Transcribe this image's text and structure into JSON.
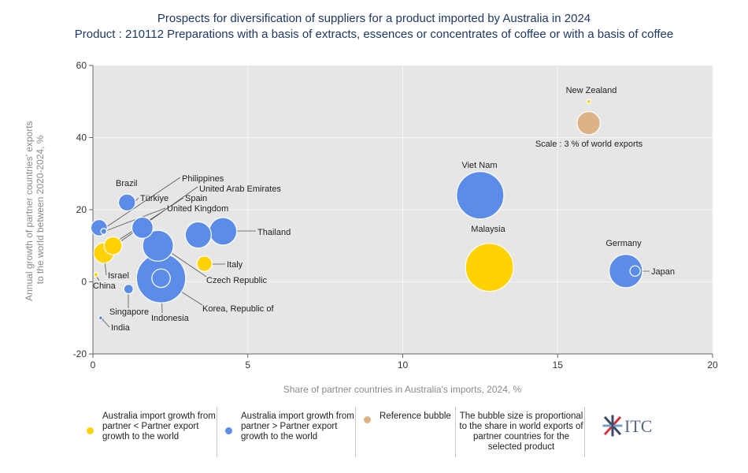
{
  "chart_data": {
    "type": "scatter",
    "title": "Prospects for diversification of suppliers for a product imported by Australia in 2024",
    "subtitle": "Product : 210112 Preparations with a basis of extracts, essences or concentrates of coffee or with a basis of coffee",
    "xlabel": "Share of partner countries in Australia's imports, 2024, %",
    "ylabel_lines": [
      "Annual growth of partner countries' exports",
      "to the world between 2020-2024, %"
    ],
    "xlim": [
      0,
      20
    ],
    "ylim": [
      -20,
      60
    ],
    "xticks": [
      0,
      5,
      10,
      15,
      20
    ],
    "yticks": [
      -20,
      0,
      20,
      40,
      60
    ],
    "grid": true,
    "colors": {
      "yellow": "#ffd200",
      "blue": "#5b8de8",
      "reference": "#dcb387",
      "plot_bg": "#e6e6e6"
    },
    "points": [
      {
        "label": "New Zealand",
        "x": 16.0,
        "y": 50,
        "share": 0.05,
        "group": "yellow"
      },
      {
        "label": "Viet Nam",
        "x": 12.5,
        "y": 24,
        "share": 12.5,
        "group": "blue"
      },
      {
        "label": "Malaysia",
        "x": 12.8,
        "y": 4,
        "share": 12.8,
        "group": "yellow"
      },
      {
        "label": "Germany",
        "x": 17.2,
        "y": 3,
        "share": 6.2,
        "group": "blue"
      },
      {
        "label": "Japan",
        "x": 17.5,
        "y": 3,
        "share": 0.6,
        "group": "blue"
      },
      {
        "label": "Thailand",
        "x": 4.2,
        "y": 14,
        "share": 4.2,
        "group": "blue"
      },
      {
        "label": "Italy",
        "x": 3.6,
        "y": 5,
        "share": 1.3,
        "group": "yellow"
      },
      {
        "label": "Czech Republic",
        "x": 2.1,
        "y": 10,
        "share": 5.3,
        "group": "blue"
      },
      {
        "label": "Korea, Republic of",
        "x": 2.2,
        "y": 1,
        "share": 13.5,
        "group": "blue"
      },
      {
        "label": "Indonesia",
        "x": 2.2,
        "y": 1,
        "share": 1.9,
        "group": "blue"
      },
      {
        "label": "United Arab Emirates",
        "x": 3.4,
        "y": 13,
        "share": 3.8,
        "group": "blue"
      },
      {
        "label": "Philippines",
        "x": 1.6,
        "y": 15,
        "share": 2.5,
        "group": "blue"
      },
      {
        "label": "Türkiye",
        "x": 1.1,
        "y": 22,
        "share": 1.6,
        "group": "blue"
      },
      {
        "label": "Brazil",
        "x": 0.2,
        "y": 15,
        "share": 1.5,
        "group": "blue"
      },
      {
        "label": "Spain",
        "x": 0.65,
        "y": 10,
        "share": 1.8,
        "group": "yellow"
      },
      {
        "label": "United Kingdom",
        "x": 0.35,
        "y": 14,
        "share": 0.2,
        "group": "blue"
      },
      {
        "label": "Israel",
        "x": 0.35,
        "y": 8,
        "share": 2.3,
        "group": "yellow"
      },
      {
        "label": "China",
        "x": 0.1,
        "y": 2,
        "share": 0.1,
        "group": "yellow"
      },
      {
        "label": "Singapore",
        "x": 1.15,
        "y": -2,
        "share": 0.5,
        "group": "blue"
      },
      {
        "label": "India",
        "x": 0.25,
        "y": -10,
        "share": 0.05,
        "group": "blue"
      }
    ],
    "reference": {
      "x": 16.0,
      "y": 44,
      "share": 3,
      "label": "Scale : 3 % of world exports"
    }
  },
  "legend": {
    "yellow_label": "Australia import growth from partner < Partner export growth to the world",
    "blue_label": "Australia import growth from partner > Partner export growth to the world",
    "reference_label": "Reference bubble",
    "note": "The bubble size is proportional to the share in world exports of partner countries for the selected product",
    "logo_text": "ITC"
  }
}
